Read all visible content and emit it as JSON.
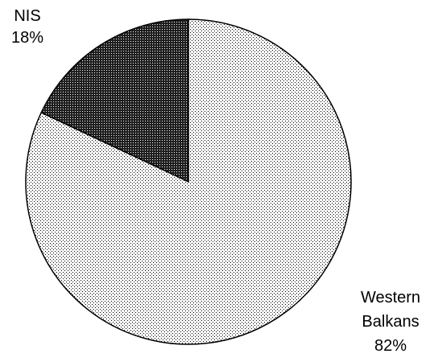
{
  "chart_data": {
    "type": "pie",
    "title": "",
    "slices": [
      {
        "name": "NIS",
        "value": 18,
        "label_lines": [
          "NIS"
        ],
        "value_label": "18%",
        "fill": "dark-stipple"
      },
      {
        "name": "Western Balkans",
        "value": 82,
        "label_lines": [
          "Western",
          "Balkans"
        ],
        "value_label": "82%",
        "fill": "light-stipple"
      }
    ],
    "start_angle_deg": 0,
    "direction": "counterclockwise",
    "legend": "none",
    "colors": {
      "outline": "#000000",
      "light_dot": "#000000",
      "dark_dot": "#ffffff"
    }
  }
}
